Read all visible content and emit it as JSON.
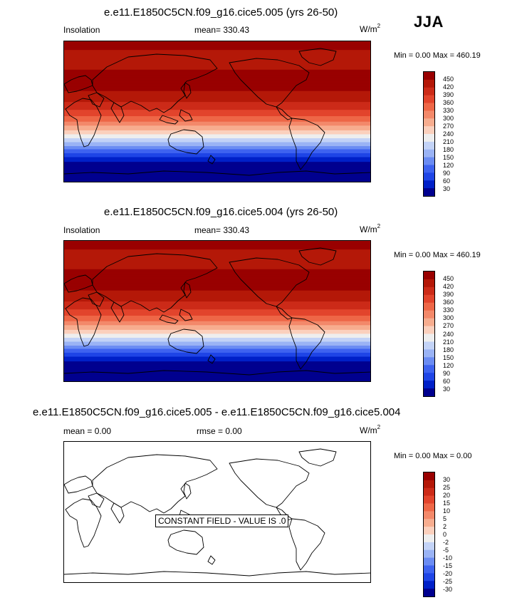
{
  "season": "JJA",
  "colors": {
    "insolation": [
      "#00008f",
      "#0020c8",
      "#1f45e6",
      "#3e63f0",
      "#6b8cf3",
      "#9ab3f5",
      "#c3d3f7",
      "#eeeeee",
      "#fbd0bd",
      "#f7ad8f",
      "#f3896a",
      "#ee6747",
      "#e2442c",
      "#cc2b18",
      "#b41808",
      "#990000"
    ],
    "difference": [
      "#00008f",
      "#0020c8",
      "#1f45e6",
      "#3e63f0",
      "#6b8cf3",
      "#9ab3f5",
      "#c3d3f7",
      "#eeeeee",
      "#fbd0bd",
      "#f7ad8f",
      "#f3896a",
      "#ee6747",
      "#e2442c",
      "#cc2b18",
      "#b41808",
      "#990000"
    ]
  },
  "panels": [
    {
      "title": "e.e11.E1850C5CN.f09_g16.cice5.005 (yrs 26-50)",
      "left_label": "Insolation",
      "center_label": "mean= 330.43",
      "units": "W/m",
      "units_sup": "2",
      "minmax": "Min =   0.00 Max = 460.19"
    },
    {
      "title": "e.e11.E1850C5CN.f09_g16.cice5.004 (yrs 26-50)",
      "left_label": "Insolation",
      "center_label": "mean= 330.43",
      "units": "W/m",
      "units_sup": "2",
      "minmax": "Min =   0.00 Max = 460.19"
    },
    {
      "title": "e.e11.E1850C5CN.f09_g16.cice5.005 - e.e11.E1850C5CN.f09_g16.cice5.004",
      "left_label": "mean =   0.00",
      "center_label": "rmse =   0.00",
      "units": "W/m",
      "units_sup": "2",
      "minmax": "Min =   0.00 Max =   0.00",
      "annotation": "CONSTANT FIELD - VALUE IS .0"
    }
  ],
  "chart_data": [
    {
      "type": "heatmap",
      "title": "e.e11.E1850C5CN.f09_g16.cice5.005 (yrs 26-50)",
      "variable": "Insolation",
      "units": "W/m2",
      "mean": 330.43,
      "min": 0.0,
      "max": 460.19,
      "colorbar_levels": [
        30,
        60,
        90,
        120,
        150,
        180,
        210,
        240,
        270,
        300,
        330,
        360,
        390,
        420,
        450
      ],
      "colorbar_tick_labels": [
        "450",
        "420",
        "390",
        "360",
        "330",
        "300",
        "270",
        "240",
        "210",
        "180",
        "150",
        "120",
        "90",
        "60",
        "30"
      ],
      "field_by_latitude": {
        "lat": [
          90,
          80,
          70,
          60,
          50,
          40,
          30,
          20,
          10,
          0,
          -10,
          -20,
          -30,
          -40,
          -50,
          -60,
          -70,
          -80,
          -90
        ],
        "value": [
          460,
          452,
          434,
          442,
          455,
          458,
          454,
          440,
          412,
          380,
          338,
          286,
          228,
          166,
          104,
          44,
          0,
          0,
          0
        ]
      }
    },
    {
      "type": "heatmap",
      "title": "e.e11.E1850C5CN.f09_g16.cice5.004 (yrs 26-50)",
      "variable": "Insolation",
      "units": "W/m2",
      "mean": 330.43,
      "min": 0.0,
      "max": 460.19,
      "colorbar_levels": [
        30,
        60,
        90,
        120,
        150,
        180,
        210,
        240,
        270,
        300,
        330,
        360,
        390,
        420,
        450
      ],
      "colorbar_tick_labels": [
        "450",
        "420",
        "390",
        "360",
        "330",
        "300",
        "270",
        "240",
        "210",
        "180",
        "150",
        "120",
        "90",
        "60",
        "30"
      ],
      "field_by_latitude": {
        "lat": [
          90,
          80,
          70,
          60,
          50,
          40,
          30,
          20,
          10,
          0,
          -10,
          -20,
          -30,
          -40,
          -50,
          -60,
          -70,
          -80,
          -90
        ],
        "value": [
          460,
          452,
          434,
          442,
          455,
          458,
          454,
          440,
          412,
          380,
          338,
          286,
          228,
          166,
          104,
          44,
          0,
          0,
          0
        ]
      }
    },
    {
      "type": "heatmap",
      "title": "e.e11.E1850C5CN.f09_g16.cice5.005 - e.e11.E1850C5CN.f09_g16.cice5.004",
      "units": "W/m2",
      "mean": 0.0,
      "rmse": 0.0,
      "min": 0.0,
      "max": 0.0,
      "colorbar_levels": [
        -30,
        -25,
        -20,
        -15,
        -10,
        -5,
        -2,
        0,
        2,
        5,
        10,
        15,
        20,
        25,
        30
      ],
      "colorbar_tick_labels": [
        "30",
        "25",
        "20",
        "15",
        "10",
        "5",
        "2",
        "0",
        "-2",
        "-5",
        "-10",
        "-15",
        "-20",
        "-25",
        "-30"
      ],
      "annotation": "CONSTANT FIELD - VALUE IS .0",
      "field_by_latitude": {
        "lat": [
          90,
          -90
        ],
        "value": [
          0,
          0
        ]
      }
    }
  ]
}
